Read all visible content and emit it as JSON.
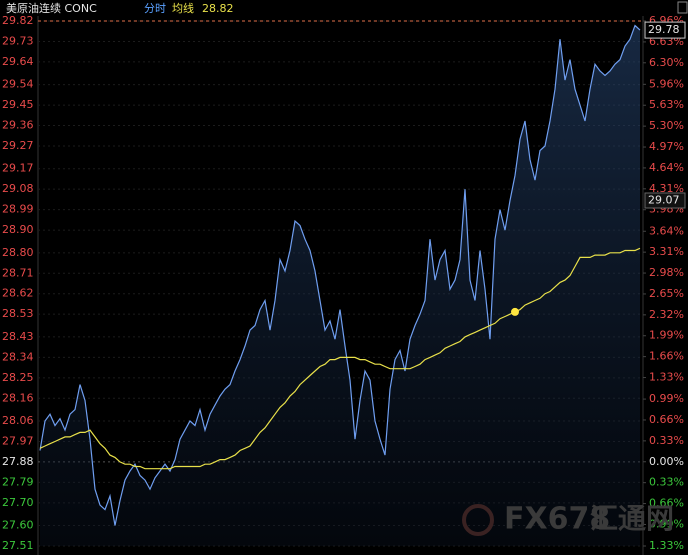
{
  "chart_data": {
    "type": "line",
    "title": "美原油连续 CONC",
    "mode_label": "分时",
    "avg_label": "均线",
    "avg_value_label": "28.82",
    "current_price_label": "29.78",
    "cursor_price_label": "29.07",
    "watermark": "FX678",
    "watermark_cn": "汇通网",
    "reference_line": 29.82,
    "ylim": [
      27.51,
      29.82
    ],
    "yticks": [
      29.82,
      29.73,
      29.64,
      29.54,
      29.45,
      29.36,
      29.27,
      29.17,
      29.08,
      28.99,
      {
        "value": 28.9,
        "label": "28.90"
      },
      {
        "value": 28.8,
        "label": "28.80"
      },
      28.71,
      28.62,
      28.53,
      28.43,
      28.34,
      28.25,
      28.16,
      28.06,
      27.97,
      27.88,
      27.79,
      {
        "value": 27.7,
        "label": "27.70"
      },
      {
        "value": 27.6,
        "label": "27.60"
      },
      27.51
    ],
    "y2lim": [
      -1.33,
      6.96
    ],
    "y2ticks": [
      {
        "value": 6.96,
        "label": "6.96%"
      },
      {
        "value": 6.63,
        "label": "6.63%"
      },
      {
        "value": 6.3,
        "label": "6.30%"
      },
      {
        "value": 5.96,
        "label": "5.96%"
      },
      {
        "value": 5.63,
        "label": "5.63%"
      },
      {
        "value": 5.3,
        "label": "5.30%"
      },
      {
        "value": 4.97,
        "label": "4.97%"
      },
      {
        "value": 4.64,
        "label": "4.64%"
      },
      {
        "value": 4.31,
        "label": "4.31%"
      },
      {
        "value": 3.98,
        "label": "3.98%"
      },
      {
        "value": 3.64,
        "label": "3.64%"
      },
      {
        "value": 3.31,
        "label": "3.31%"
      },
      {
        "value": 2.98,
        "label": "2.98%"
      },
      {
        "value": 2.65,
        "label": "2.65%"
      },
      {
        "value": 2.32,
        "label": "2.32%"
      },
      {
        "value": 1.99,
        "label": "1.99%"
      },
      {
        "value": 1.66,
        "label": "1.66%"
      },
      {
        "value": 1.33,
        "label": "1.33%"
      },
      {
        "value": 0.99,
        "label": "0.99%"
      },
      {
        "value": 0.66,
        "label": "0.66%"
      },
      {
        "value": 0.33,
        "label": "0.33%"
      },
      {
        "value": 0,
        "label": "0.00%"
      },
      {
        "value": -0.33,
        "label": "0.33%"
      },
      {
        "value": -0.66,
        "label": "0.66%"
      },
      {
        "value": -0.99,
        "label": "0.99%"
      },
      {
        "value": -1.33,
        "label": "1.33%"
      }
    ],
    "grid": true,
    "series": [
      {
        "color": "#6f9ef0",
        "values": [
          27.93,
          28.06,
          28.09,
          28.04,
          28.07,
          28.02,
          28.09,
          28.11,
          28.22,
          28.15,
          27.98,
          27.76,
          27.69,
          27.67,
          27.73,
          27.6,
          27.71,
          27.8,
          27.84,
          27.87,
          27.82,
          27.8,
          27.76,
          27.81,
          27.84,
          27.87,
          27.84,
          27.89,
          27.98,
          28.02,
          28.06,
          28.04,
          28.11,
          28.02,
          28.09,
          28.13,
          28.17,
          28.2,
          28.22,
          28.28,
          28.33,
          28.39,
          28.46,
          28.48,
          28.55,
          28.59,
          28.46,
          28.59,
          28.77,
          28.72,
          28.81,
          28.94,
          28.92,
          28.86,
          28.81,
          28.72,
          28.59,
          28.46,
          28.5,
          28.42,
          28.55,
          28.39,
          28.24,
          27.98,
          28.15,
          28.28,
          28.24,
          28.06,
          27.98,
          27.91,
          28.2,
          28.33,
          28.37,
          28.28,
          28.42,
          28.48,
          28.53,
          28.59,
          28.86,
          28.68,
          28.77,
          28.81,
          28.64,
          28.68,
          28.77,
          29.08,
          28.68,
          28.59,
          28.81,
          28.64,
          28.42,
          28.86,
          28.99,
          28.9,
          29.03,
          29.14,
          29.3,
          29.38,
          29.21,
          29.12,
          29.25,
          29.27,
          29.38,
          29.52,
          29.74,
          29.56,
          29.65,
          29.52,
          29.45,
          29.38,
          29.52,
          29.63,
          29.6,
          29.58,
          29.6,
          29.63,
          29.65,
          29.71,
          29.74,
          29.8,
          29.78
        ]
      },
      {
        "color": "#e8e04a",
        "values": [
          27.94,
          27.95,
          27.96,
          27.97,
          27.98,
          27.99,
          27.99,
          28.0,
          28.01,
          28.01,
          28.02,
          27.99,
          27.96,
          27.94,
          27.91,
          27.9,
          27.88,
          27.87,
          27.87,
          27.86,
          27.86,
          27.85,
          27.85,
          27.85,
          27.85,
          27.85,
          27.85,
          27.86,
          27.86,
          27.86,
          27.86,
          27.86,
          27.86,
          27.87,
          27.87,
          27.88,
          27.89,
          27.89,
          27.9,
          27.91,
          27.93,
          27.94,
          27.95,
          27.98,
          28.01,
          28.03,
          28.06,
          28.09,
          28.12,
          28.14,
          28.17,
          28.19,
          28.22,
          28.24,
          28.26,
          28.28,
          28.3,
          28.31,
          28.33,
          28.33,
          28.34,
          28.34,
          28.34,
          28.34,
          28.33,
          28.33,
          28.32,
          28.31,
          28.31,
          28.3,
          28.29,
          28.29,
          28.29,
          28.29,
          28.29,
          28.3,
          28.31,
          28.33,
          28.34,
          28.35,
          28.36,
          28.38,
          28.39,
          28.4,
          28.41,
          28.43,
          28.44,
          28.45,
          28.46,
          28.47,
          28.48,
          28.49,
          28.51,
          28.52,
          28.53,
          28.54,
          28.55,
          28.57,
          28.58,
          28.59,
          28.6,
          28.62,
          28.63,
          28.65,
          28.67,
          28.68,
          28.7,
          28.74,
          28.78,
          28.78,
          28.78,
          28.79,
          28.79,
          28.79,
          28.8,
          28.8,
          28.8,
          28.81,
          28.81,
          28.81,
          28.82
        ]
      }
    ]
  }
}
